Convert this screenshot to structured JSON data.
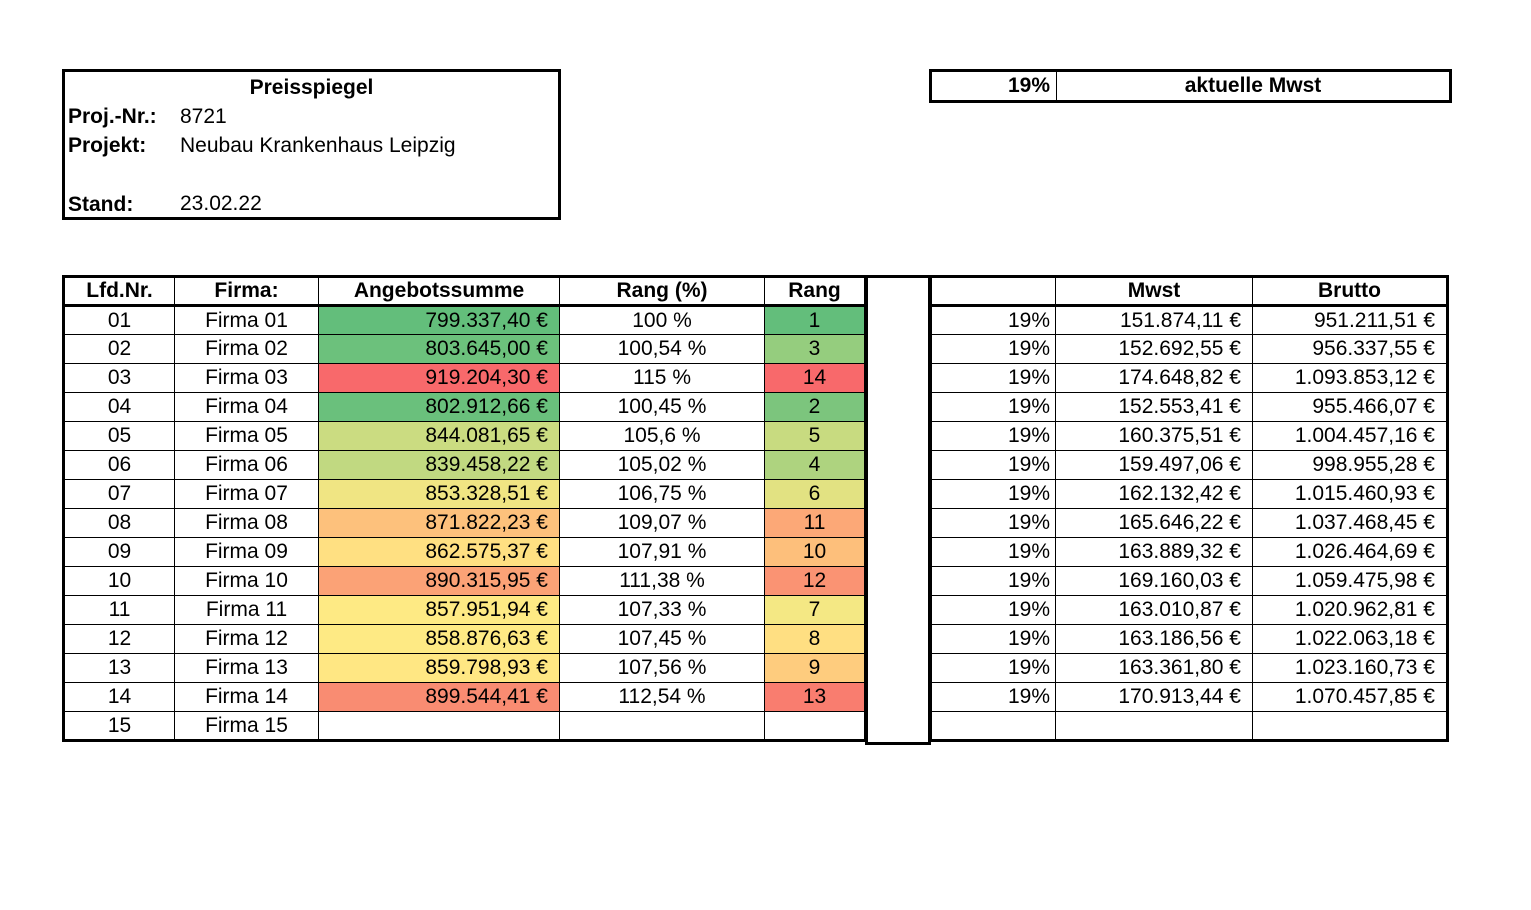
{
  "info": {
    "title": "Preisspiegel",
    "proj_label": "Proj.-Nr.:",
    "proj_value": "8721",
    "projekt_label": "Projekt:",
    "projekt_value": "Neubau Krankenhaus Leipzig",
    "stand_label": "Stand:",
    "stand_value": "23.02.22"
  },
  "vat": {
    "rate": "19%",
    "label": "aktuelle Mwst"
  },
  "main_headers": [
    "Lfd.Nr.",
    "Firma:",
    "Angebotssumme",
    "Rang (%)",
    "Rang"
  ],
  "right_headers": [
    "",
    "Mwst",
    "Brutto"
  ],
  "rows": [
    {
      "nr": "01",
      "firma": "Firma 01",
      "summe": "799.337,40 €",
      "pct": "100 %",
      "rang": "1",
      "color": "#63be7b",
      "rcolor": "#63be7b",
      "vat": "19%",
      "mwst": "151.874,11 €",
      "brutto": "951.211,51 €"
    },
    {
      "nr": "02",
      "firma": "Firma 02",
      "summe": "803.645,00 €",
      "pct": "100,54 %",
      "rang": "3",
      "color": "#6cc17c",
      "rcolor": "#95cd7e",
      "vat": "19%",
      "mwst": "152.692,55 €",
      "brutto": "956.337,55 €"
    },
    {
      "nr": "03",
      "firma": "Firma 03",
      "summe": "919.204,30 €",
      "pct": "115 %",
      "rang": "14",
      "color": "#f8696b",
      "rcolor": "#f8696b",
      "vat": "19%",
      "mwst": "174.648,82 €",
      "brutto": "1.093.853,12 €"
    },
    {
      "nr": "04",
      "firma": "Firma 04",
      "summe": "802.912,66 €",
      "pct": "100,45 %",
      "rang": "2",
      "color": "#6ac07c",
      "rcolor": "#7cc57d",
      "vat": "19%",
      "mwst": "152.553,41 €",
      "brutto": "955.466,07 €"
    },
    {
      "nr": "05",
      "firma": "Firma 05",
      "summe": "844.081,65 €",
      "pct": "105,6 %",
      "rang": "5",
      "color": "#cbdc81",
      "rcolor": "#c8db80",
      "vat": "19%",
      "mwst": "160.375,51 €",
      "brutto": "1.004.457,16 €"
    },
    {
      "nr": "06",
      "firma": "Firma 06",
      "summe": "839.458,22 €",
      "pct": "105,02 %",
      "rang": "4",
      "color": "#c1d981",
      "rcolor": "#aed37f",
      "vat": "19%",
      "mwst": "159.497,06 €",
      "brutto": "998.955,28 €"
    },
    {
      "nr": "07",
      "firma": "Firma 07",
      "summe": "853.328,51 €",
      "pct": "106,75 %",
      "rang": "6",
      "color": "#f0e583",
      "rcolor": "#e2e282",
      "vat": "19%",
      "mwst": "162.132,42 €",
      "brutto": "1.015.460,93 €"
    },
    {
      "nr": "08",
      "firma": "Firma 08",
      "summe": "871.822,23 €",
      "pct": "109,07 %",
      "rang": "11",
      "color": "#fdc17c",
      "rcolor": "#fca877",
      "vat": "19%",
      "mwst": "165.646,22 €",
      "brutto": "1.037.468,45 €"
    },
    {
      "nr": "09",
      "firma": "Firma 09",
      "summe": "862.575,37 €",
      "pct": "107,91 %",
      "rang": "10",
      "color": "#ffe082",
      "rcolor": "#fdbf7b",
      "vat": "19%",
      "mwst": "163.889,32 €",
      "brutto": "1.026.464,69 €"
    },
    {
      "nr": "10",
      "firma": "Firma 10",
      "summe": "890.315,95 €",
      "pct": "111,38 %",
      "rang": "12",
      "color": "#fba276",
      "rcolor": "#fa9373",
      "vat": "19%",
      "mwst": "169.160,03 €",
      "brutto": "1.059.475,98 €"
    },
    {
      "nr": "11",
      "firma": "Firma 11",
      "summe": "857.951,94 €",
      "pct": "107,33 %",
      "rang": "7",
      "color": "#feea84",
      "rcolor": "#f4e884",
      "vat": "19%",
      "mwst": "163.010,87 €",
      "brutto": "1.020.962,81 €"
    },
    {
      "nr": "12",
      "firma": "Firma 12",
      "summe": "858.876,63 €",
      "pct": "107,45 %",
      "rang": "8",
      "color": "#feea84",
      "rcolor": "#ffdf82",
      "vat": "19%",
      "mwst": "163.186,56 €",
      "brutto": "1.022.063,18 €"
    },
    {
      "nr": "13",
      "firma": "Firma 13",
      "summe": "859.798,93 €",
      "pct": "107,56 %",
      "rang": "9",
      "color": "#ffe783",
      "rcolor": "#fecc7e",
      "vat": "19%",
      "mwst": "163.361,80 €",
      "brutto": "1.023.160,73 €"
    },
    {
      "nr": "14",
      "firma": "Firma 14",
      "summe": "899.544,41 €",
      "pct": "112,54 %",
      "rang": "13",
      "color": "#f98c72",
      "rcolor": "#f97d6f",
      "vat": "19%",
      "mwst": "170.913,44 €",
      "brutto": "1.070.457,85 €"
    },
    {
      "nr": "15",
      "firma": "Firma 15",
      "summe": "",
      "pct": "",
      "rang": "",
      "color": "#ffffff",
      "rcolor": "#ffffff",
      "vat": "",
      "mwst": "",
      "brutto": ""
    }
  ]
}
